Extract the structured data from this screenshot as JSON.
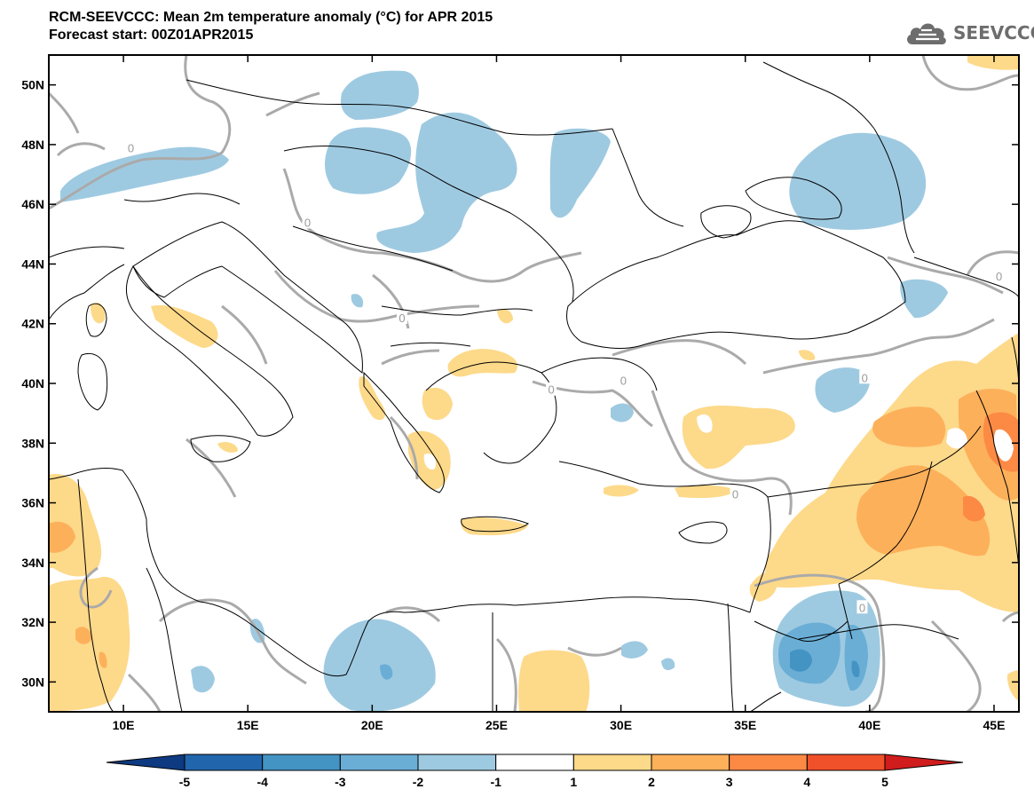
{
  "header": {
    "title": "RCM-SEEVCCC: Mean 2m temperature anomaly (°C) for APR 2015",
    "subtitle": "Forecast start: 00Z01APR2015"
  },
  "logo": {
    "text": "SEEVCCC",
    "icon": "cloud-icon",
    "color": "#6d6d6d"
  },
  "map": {
    "lon_range": [
      7,
      46
    ],
    "lat_range": [
      29,
      51
    ],
    "lon_ticks": [
      "10E",
      "15E",
      "20E",
      "25E",
      "30E",
      "35E",
      "40E",
      "45E"
    ],
    "lat_ticks": [
      "30N",
      "32N",
      "34N",
      "36N",
      "38N",
      "40N",
      "42N",
      "44N",
      "46N",
      "48N",
      "50N"
    ],
    "contour_label": "0",
    "land_color": "#ffffff",
    "border_color": "#000000",
    "contour_color": "#aaaaaa"
  },
  "colorbar": {
    "labels": [
      "-5",
      "-4",
      "-3",
      "-2",
      "-1",
      "1",
      "2",
      "3",
      "4",
      "5"
    ],
    "colors": [
      "#0d3a80",
      "#2166ac",
      "#4393c3",
      "#6aaed6",
      "#9ecae1",
      "#ffffff",
      "#fdd98a",
      "#fdb05a",
      "#fc8a44",
      "#f0502a",
      "#d01c1c"
    ]
  }
}
